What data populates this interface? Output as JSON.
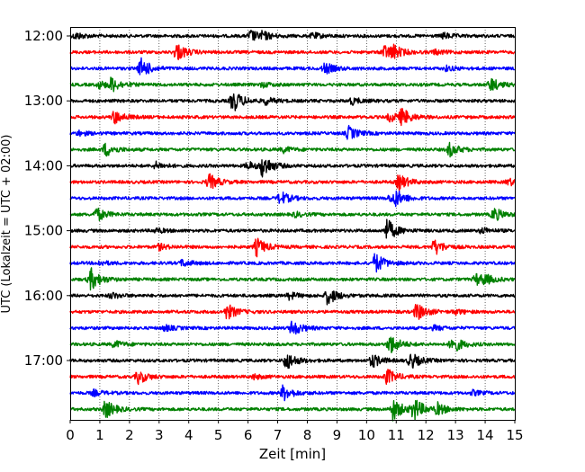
{
  "chart_data": {
    "type": "line",
    "title": "",
    "xlabel": "Zeit  [min]",
    "ylabel": "UTC (Lokalzeit = UTC + 02:00)",
    "xlim": [
      0,
      15
    ],
    "x_ticks": [
      0,
      1,
      2,
      3,
      4,
      5,
      6,
      7,
      8,
      9,
      10,
      11,
      12,
      13,
      14,
      15
    ],
    "x_tick_labels": [
      "0",
      "1",
      "2",
      "3",
      "4",
      "5",
      "6",
      "7",
      "8",
      "9",
      "10",
      "11",
      "12",
      "13",
      "14",
      "15"
    ],
    "y_tick_labels": [
      {
        "label": "12:00",
        "trace_index": 0
      },
      {
        "label": "13:00",
        "trace_index": 4
      },
      {
        "label": "14:00",
        "trace_index": 8
      },
      {
        "label": "15:00",
        "trace_index": 12
      },
      {
        "label": "16:00",
        "trace_index": 16
      },
      {
        "label": "17:00",
        "trace_index": 20
      }
    ],
    "grid": "vertical dotted, every minute",
    "trace_colors": [
      "#000000",
      "#ff0000",
      "#0000ff",
      "#008000"
    ],
    "series": [
      {
        "start_utc": "12:00",
        "bursts": [
          [
            0.2,
            0.3
          ],
          [
            6.1,
            0.5
          ],
          [
            6.5,
            0.3
          ],
          [
            8.2,
            0.25
          ],
          [
            12.6,
            0.25
          ]
        ]
      },
      {
        "start_utc": "12:15",
        "bursts": [
          [
            3.6,
            0.8
          ],
          [
            10.6,
            0.6
          ],
          [
            10.9,
            0.5
          ],
          [
            12.3,
            0.2
          ]
        ]
      },
      {
        "start_utc": "12:30",
        "bursts": [
          [
            2.4,
            0.9
          ],
          [
            8.6,
            0.5
          ],
          [
            12.7,
            0.2
          ]
        ]
      },
      {
        "start_utc": "12:45",
        "bursts": [
          [
            1.4,
            0.6
          ],
          [
            1.0,
            0.3
          ],
          [
            14.2,
            0.6
          ],
          [
            6.5,
            0.2
          ]
        ]
      },
      {
        "start_utc": "13:00",
        "bursts": [
          [
            5.5,
            1.0
          ],
          [
            6.6,
            0.3
          ],
          [
            9.5,
            0.3
          ]
        ]
      },
      {
        "start_utc": "13:15",
        "bursts": [
          [
            1.5,
            0.6
          ],
          [
            11.2,
            0.7
          ],
          [
            10.8,
            0.4
          ]
        ]
      },
      {
        "start_utc": "13:30",
        "bursts": [
          [
            9.4,
            0.6
          ],
          [
            0.3,
            0.2
          ]
        ]
      },
      {
        "start_utc": "13:45",
        "bursts": [
          [
            1.2,
            0.6
          ],
          [
            12.8,
            0.6
          ],
          [
            7.2,
            0.25
          ]
        ]
      },
      {
        "start_utc": "14:00",
        "bursts": [
          [
            6.5,
            1.0
          ],
          [
            2.9,
            0.3
          ],
          [
            6.0,
            0.35
          ]
        ]
      },
      {
        "start_utc": "14:15",
        "bursts": [
          [
            4.7,
            0.7
          ],
          [
            11.1,
            0.7
          ],
          [
            14.8,
            0.3
          ]
        ]
      },
      {
        "start_utc": "14:30",
        "bursts": [
          [
            7.1,
            0.6
          ],
          [
            11.0,
            0.6
          ],
          [
            10.8,
            0.3
          ]
        ]
      },
      {
        "start_utc": "14:45",
        "bursts": [
          [
            0.9,
            0.6
          ],
          [
            14.3,
            0.6
          ],
          [
            7.6,
            0.2
          ]
        ]
      },
      {
        "start_utc": "15:00",
        "bursts": [
          [
            10.7,
            1.0
          ],
          [
            2.9,
            0.2
          ],
          [
            13.9,
            0.25
          ]
        ]
      },
      {
        "start_utc": "15:15",
        "bursts": [
          [
            6.3,
            0.8
          ],
          [
            12.3,
            0.7
          ],
          [
            3.0,
            0.25
          ]
        ]
      },
      {
        "start_utc": "15:30",
        "bursts": [
          [
            10.3,
            0.9
          ],
          [
            3.8,
            0.3
          ],
          [
            1.0,
            0.2
          ]
        ]
      },
      {
        "start_utc": "15:45",
        "bursts": [
          [
            0.7,
            1.0
          ],
          [
            13.7,
            0.5
          ],
          [
            14.0,
            0.3
          ]
        ]
      },
      {
        "start_utc": "16:00",
        "bursts": [
          [
            8.7,
            0.8
          ],
          [
            7.4,
            0.3
          ],
          [
            1.4,
            0.25
          ]
        ]
      },
      {
        "start_utc": "16:15",
        "bursts": [
          [
            5.3,
            0.7
          ],
          [
            11.7,
            0.8
          ],
          [
            13.0,
            0.2
          ]
        ]
      },
      {
        "start_utc": "16:30",
        "bursts": [
          [
            7.5,
            0.7
          ],
          [
            3.2,
            0.25
          ],
          [
            12.3,
            0.2
          ]
        ]
      },
      {
        "start_utc": "16:45",
        "bursts": [
          [
            10.8,
            0.9
          ],
          [
            12.9,
            0.8
          ],
          [
            1.5,
            0.3
          ]
        ]
      },
      {
        "start_utc": "17:00",
        "bursts": [
          [
            7.3,
            0.8
          ],
          [
            10.2,
            0.6
          ],
          [
            11.5,
            0.7
          ]
        ]
      },
      {
        "start_utc": "17:15",
        "bursts": [
          [
            2.3,
            0.6
          ],
          [
            10.7,
            0.7
          ],
          [
            6.2,
            0.2
          ]
        ]
      },
      {
        "start_utc": "17:30",
        "bursts": [
          [
            7.2,
            0.7
          ],
          [
            0.8,
            0.25
          ],
          [
            13.6,
            0.2
          ]
        ]
      },
      {
        "start_utc": "17:45",
        "bursts": [
          [
            1.2,
            0.8
          ],
          [
            10.9,
            1.0
          ],
          [
            11.6,
            1.0
          ],
          [
            12.4,
            0.5
          ]
        ]
      }
    ]
  }
}
